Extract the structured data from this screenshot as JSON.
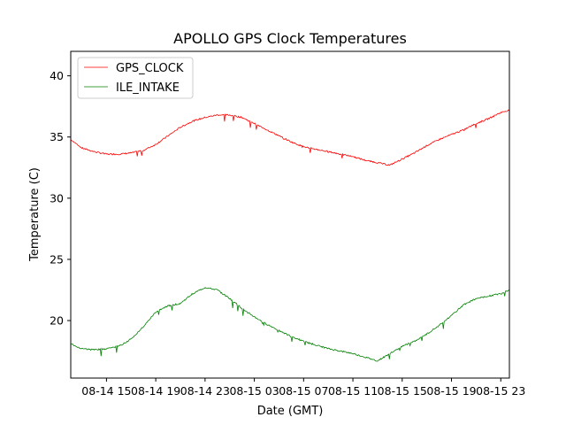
{
  "chart_data": {
    "type": "line",
    "title": "APOLLO GPS Clock Temperatures",
    "xlabel": "Date (GMT)",
    "ylabel": "Temperature (C)",
    "xlim": [
      12.1,
      47.7
    ],
    "ylim": [
      15.3,
      42.0
    ],
    "x_unit": "hours since 08-14 00:00 GMT",
    "xticks": [
      {
        "value": 15,
        "label": "08-14 15"
      },
      {
        "value": 19,
        "label": "08-14 19"
      },
      {
        "value": 23,
        "label": "08-14 23"
      },
      {
        "value": 27,
        "label": "08-15 03"
      },
      {
        "value": 31,
        "label": "08-15 07"
      },
      {
        "value": 35,
        "label": "08-15 11"
      },
      {
        "value": 39,
        "label": "08-15 15"
      },
      {
        "value": 43,
        "label": "08-15 19"
      },
      {
        "value": 47,
        "label": "08-15 23"
      }
    ],
    "yticks": [
      {
        "value": 20,
        "label": "20"
      },
      {
        "value": 25,
        "label": "25"
      },
      {
        "value": 30,
        "label": "30"
      },
      {
        "value": 35,
        "label": "35"
      },
      {
        "value": 40,
        "label": "40"
      }
    ],
    "legend_position": "top-left",
    "series": [
      {
        "name": "GPS_CLOCK",
        "color": "#ff0000",
        "x": [
          12.1,
          13.0,
          14.0,
          15.0,
          16.0,
          17.0,
          18.0,
          19.0,
          20.0,
          21.0,
          22.0,
          23.0,
          24.0,
          25.0,
          26.0,
          27.0,
          28.0,
          29.0,
          30.0,
          31.0,
          32.0,
          33.0,
          34.0,
          35.0,
          36.0,
          37.0,
          38.0,
          39.0,
          40.0,
          41.0,
          42.0,
          43.0,
          44.0,
          45.0,
          46.0,
          47.0,
          47.7
        ],
        "y": [
          34.8,
          34.1,
          33.8,
          33.6,
          33.6,
          33.7,
          33.9,
          34.4,
          35.1,
          35.8,
          36.3,
          36.6,
          36.8,
          36.8,
          36.6,
          36.1,
          35.6,
          35.1,
          34.6,
          34.2,
          34.0,
          33.8,
          33.6,
          33.4,
          33.1,
          32.9,
          32.7,
          33.2,
          33.7,
          34.3,
          34.8,
          35.2,
          35.6,
          36.1,
          36.5,
          37.0,
          37.2
        ]
      },
      {
        "name": "ILE_INTAKE",
        "color": "#008000",
        "x": [
          12.1,
          13.0,
          14.0,
          15.0,
          16.0,
          17.0,
          18.0,
          19.0,
          20.0,
          21.0,
          22.0,
          23.0,
          24.0,
          25.0,
          26.0,
          27.0,
          28.0,
          29.0,
          30.0,
          31.0,
          32.0,
          33.0,
          34.0,
          35.0,
          36.0,
          37.0,
          38.0,
          39.0,
          40.0,
          41.0,
          42.0,
          43.0,
          44.0,
          45.0,
          46.0,
          47.0,
          47.7
        ],
        "y": [
          18.1,
          17.7,
          17.6,
          17.7,
          17.9,
          18.5,
          19.5,
          20.7,
          21.2,
          21.4,
          22.2,
          22.7,
          22.5,
          21.8,
          21.0,
          20.3,
          19.7,
          19.2,
          18.7,
          18.3,
          18.0,
          17.7,
          17.5,
          17.3,
          17.0,
          16.7,
          17.3,
          17.9,
          18.3,
          18.9,
          19.6,
          20.4,
          21.3,
          21.8,
          22.0,
          22.2,
          22.5
        ]
      }
    ]
  }
}
